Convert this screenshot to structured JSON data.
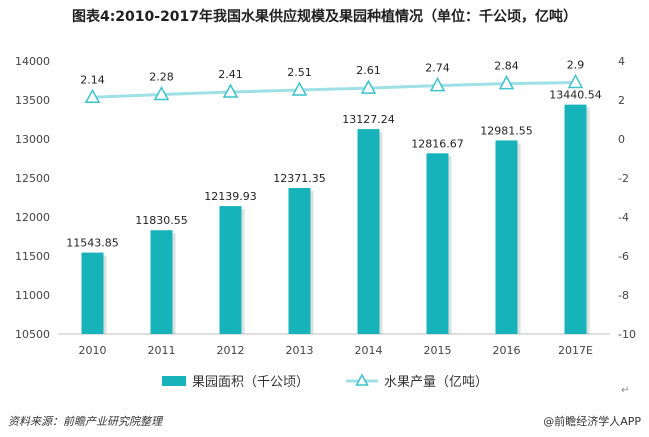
{
  "title": "图表4:2010-2017年我国水果供应规模及果园种植情况（单位：千公顷，亿吨）",
  "footer": {
    "source": "资料来源：前瞻产业研究院整理",
    "brand": "@前瞻经济学人APP"
  },
  "return_mark": "↵",
  "chart_data": {
    "type": "bar",
    "categories": [
      "2010",
      "2011",
      "2012",
      "2013",
      "2014",
      "2015",
      "2016",
      "2017E"
    ],
    "series": [
      {
        "name": "果园面积（千公顷）",
        "type": "bar",
        "axis": "left",
        "color": "#17b3bb",
        "values": [
          11543.85,
          11830.55,
          12139.93,
          12371.35,
          13127.24,
          12816.67,
          12981.55,
          13440.54
        ],
        "labels": [
          "11543.85",
          "11830.55",
          "12139.93",
          "12371.35",
          "13127.24",
          "12816.67",
          "12981.55",
          "13440.54"
        ]
      },
      {
        "name": "水果产量（亿吨）",
        "type": "line",
        "axis": "right",
        "color": "#9fe0e6",
        "marker": "triangle",
        "values": [
          2.14,
          2.28,
          2.41,
          2.51,
          2.61,
          2.74,
          2.84,
          2.9
        ],
        "labels": [
          "2.14",
          "2.28",
          "2.41",
          "2.51",
          "2.61",
          "2.74",
          "2.84",
          "2.9"
        ]
      }
    ],
    "y_left": {
      "range": [
        10500,
        14000
      ],
      "ticks": [
        "10500",
        "11000",
        "11500",
        "12000",
        "12500",
        "13000",
        "13500",
        "14000"
      ]
    },
    "y_right": {
      "range": [
        -10,
        4
      ],
      "ticks": [
        "-10",
        "-8",
        "-6",
        "-4",
        "-2",
        "0",
        "2",
        "4"
      ]
    },
    "grid": false,
    "legend_position": "bottom"
  }
}
